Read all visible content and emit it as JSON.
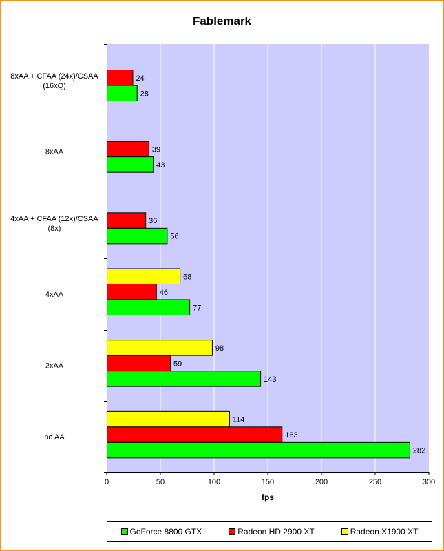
{
  "chart_data": {
    "type": "bar",
    "orientation": "horizontal",
    "title": "Fablemark",
    "xlabel": "fps",
    "ylabel": "",
    "xlim": [
      0,
      300
    ],
    "xticks": [
      "0",
      "50",
      "100",
      "150",
      "200",
      "250",
      "300"
    ],
    "grid": true,
    "legend_position": "bottom",
    "categories": [
      "8xAA + CFAA (24x)/CSAA (16xQ)",
      "8xAA",
      "4xAA + CFAA (12x)/CSAA (8x)",
      "4xAA",
      "2xAA",
      "no AA"
    ],
    "category_lines": [
      [
        "8xAA + CFAA (24x)/CSAA",
        "(16xQ)"
      ],
      [
        "8xAA"
      ],
      [
        "4xAA + CFAA (12x)/CSAA",
        "(8x)"
      ],
      [
        "4xAA"
      ],
      [
        "2xAA"
      ],
      [
        "no AA"
      ]
    ],
    "series": [
      {
        "name": "Radeon X1900 XT",
        "color": "#ffff00",
        "values": [
          null,
          null,
          null,
          68,
          98,
          114
        ]
      },
      {
        "name": "Radeon HD 2900 XT",
        "color": "#ff0000",
        "values": [
          24,
          39,
          36,
          46,
          59,
          163
        ]
      },
      {
        "name": "GeForce 8800 GTX",
        "color": "#00ff00",
        "values": [
          28,
          43,
          56,
          77,
          143,
          282
        ]
      }
    ],
    "legend_order": [
      "GeForce 8800 GTX",
      "Radeon HD 2900 XT",
      "Radeon X1900 XT"
    ],
    "plot_background": "#ccccff"
  }
}
